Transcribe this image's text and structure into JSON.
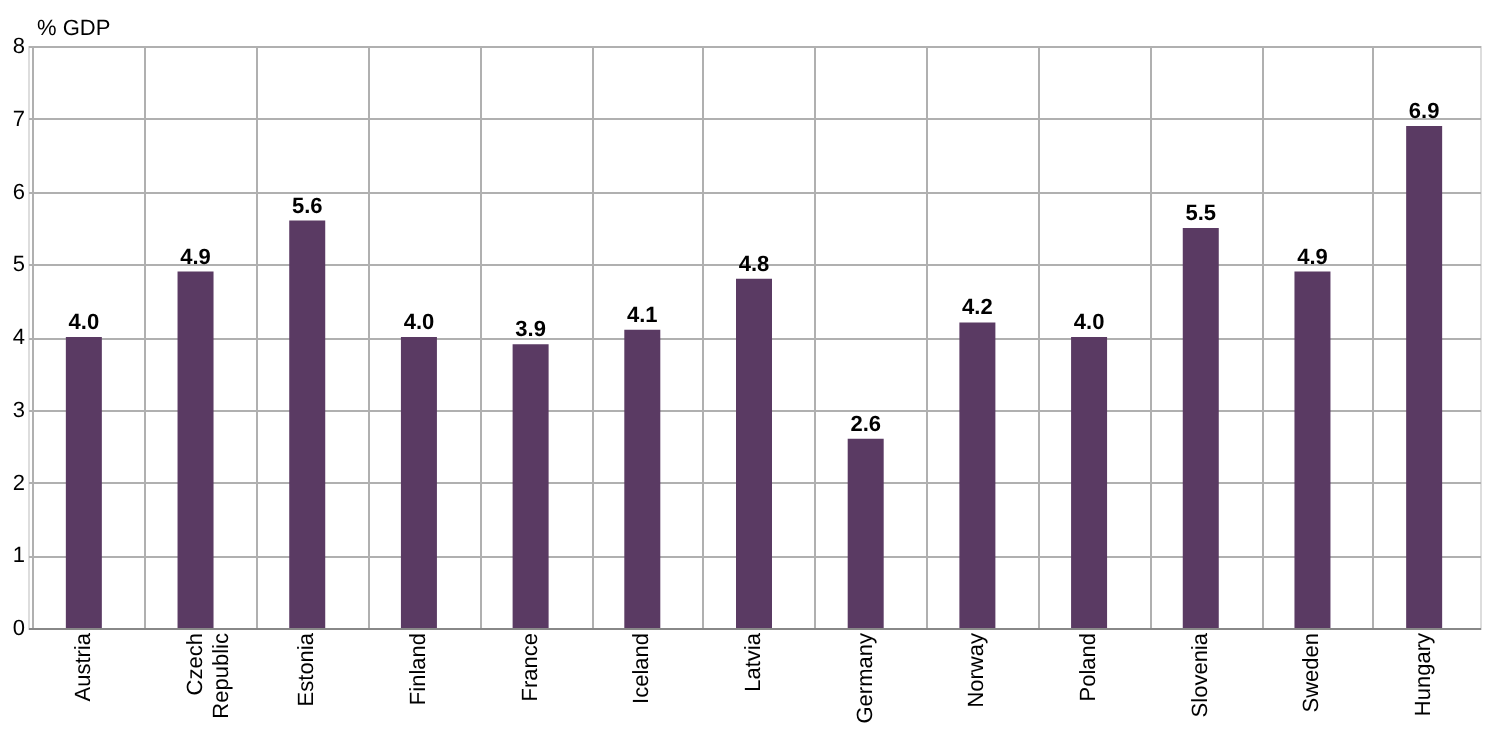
{
  "chart_data": {
    "type": "bar",
    "ylabel": "% GDP",
    "categories": [
      "Austria",
      "Czech Republic",
      "Estonia",
      "Finland",
      "France",
      "Iceland",
      "Latvia",
      "Germany",
      "Norway",
      "Poland",
      "Slovenia",
      "Sweden",
      "Hungary"
    ],
    "values": [
      4.0,
      4.9,
      5.6,
      4.0,
      3.9,
      4.1,
      4.8,
      2.6,
      4.2,
      4.0,
      5.5,
      4.9,
      6.9
    ],
    "color": "#5a3a63",
    "ylim": [
      0,
      8
    ],
    "yticks": [
      0,
      1,
      2,
      3,
      4,
      5,
      6,
      7,
      8
    ],
    "value_labels": [
      "4.0",
      "4.9",
      "5.6",
      "4.0",
      "3.9",
      "4.1",
      "4.8",
      "2.6",
      "4.2",
      "4.0",
      "5.5",
      "4.9",
      "6.9"
    ],
    "grid": true
  }
}
